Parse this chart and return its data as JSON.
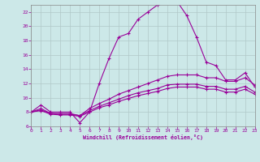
{
  "background_color": "#cce8e8",
  "grid_color": "#b0c8c8",
  "line_color": "#990099",
  "xlabel": "Windchill (Refroidissement éolien,°C)",
  "ylim": [
    6,
    23
  ],
  "xlim": [
    0,
    23
  ],
  "yticks": [
    6,
    8,
    10,
    12,
    14,
    16,
    18,
    20,
    22
  ],
  "xticks": [
    0,
    1,
    2,
    3,
    4,
    5,
    6,
    7,
    8,
    9,
    10,
    11,
    12,
    13,
    14,
    15,
    16,
    17,
    18,
    19,
    20,
    21,
    22,
    23
  ],
  "series": [
    {
      "x": [
        0,
        1,
        2,
        3,
        4,
        5,
        6,
        7,
        8,
        9,
        10,
        11,
        12,
        13,
        14,
        15,
        16,
        17,
        18,
        19,
        20,
        21,
        22,
        23
      ],
      "y": [
        8.0,
        9.0,
        8.0,
        8.0,
        8.0,
        6.5,
        8.0,
        12.0,
        15.5,
        18.5,
        19.0,
        21.0,
        22.0,
        23.0,
        23.5,
        23.5,
        21.5,
        18.5,
        15.0,
        14.5,
        12.5,
        12.5,
        13.5,
        11.5
      ]
    },
    {
      "x": [
        0,
        1,
        2,
        3,
        4,
        5,
        6,
        7,
        8,
        9,
        10,
        11,
        12,
        13,
        14,
        15,
        16,
        17,
        18,
        19,
        20,
        21,
        22,
        23
      ],
      "y": [
        8.0,
        8.5,
        7.8,
        7.8,
        7.8,
        7.5,
        8.5,
        9.2,
        9.8,
        10.5,
        11.0,
        11.5,
        12.0,
        12.5,
        13.0,
        13.2,
        13.2,
        13.2,
        12.8,
        12.8,
        12.3,
        12.3,
        12.8,
        11.8
      ]
    },
    {
      "x": [
        0,
        1,
        2,
        3,
        4,
        5,
        6,
        7,
        8,
        9,
        10,
        11,
        12,
        13,
        14,
        15,
        16,
        17,
        18,
        19,
        20,
        21,
        22,
        23
      ],
      "y": [
        8.0,
        8.3,
        7.8,
        7.7,
        7.7,
        7.5,
        8.2,
        8.8,
        9.3,
        9.8,
        10.3,
        10.7,
        11.0,
        11.3,
        11.8,
        11.9,
        11.9,
        11.9,
        11.6,
        11.6,
        11.2,
        11.2,
        11.6,
        10.8
      ]
    },
    {
      "x": [
        0,
        1,
        2,
        3,
        4,
        5,
        6,
        7,
        8,
        9,
        10,
        11,
        12,
        13,
        14,
        15,
        16,
        17,
        18,
        19,
        20,
        21,
        22,
        23
      ],
      "y": [
        8.0,
        8.2,
        7.7,
        7.6,
        7.6,
        7.4,
        8.0,
        8.6,
        9.0,
        9.5,
        9.9,
        10.3,
        10.6,
        10.9,
        11.3,
        11.5,
        11.5,
        11.5,
        11.2,
        11.2,
        10.8,
        10.8,
        11.2,
        10.5
      ]
    }
  ]
}
